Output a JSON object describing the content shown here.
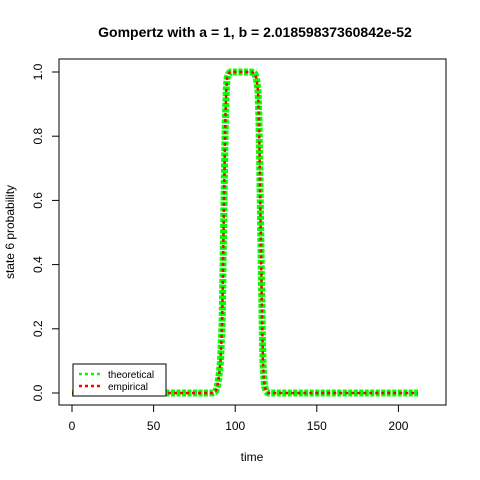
{
  "chart_data": {
    "type": "line",
    "title": "Gompertz with a = 1, b = 2.01859837360842e-52",
    "xlabel": "time",
    "ylabel": "state 6 probability",
    "xlim": [
      0,
      212
    ],
    "ylim": [
      0,
      1
    ],
    "x_ticks": [
      "0",
      "50",
      "100",
      "150",
      "200"
    ],
    "y_ticks": [
      "0.0",
      "0.2",
      "0.4",
      "0.6",
      "0.8",
      "1.0"
    ],
    "grid": false,
    "legend": {
      "position": "bottom-left",
      "entries": [
        {
          "label": "theoretical",
          "color": "#00ff00"
        },
        {
          "label": "empirical",
          "color": "#ff0000"
        }
      ]
    },
    "series": [
      {
        "name": "theoretical",
        "color": "#00ff00",
        "style": "dotted-thick",
        "x": [
          0,
          86,
          88,
          89,
          90,
          91,
          92,
          92.5,
          93,
          93.5,
          94,
          94.5,
          95,
          96,
          97,
          100,
          105,
          110,
          112,
          113,
          114,
          114.5,
          115,
          115.5,
          116,
          116.5,
          117,
          117.5,
          118,
          119,
          120,
          150,
          200,
          212
        ],
        "values": [
          0,
          0,
          0.005,
          0.02,
          0.05,
          0.1,
          0.22,
          0.38,
          0.55,
          0.72,
          0.86,
          0.94,
          0.98,
          0.995,
          1.0,
          1.0,
          1.0,
          1.0,
          0.995,
          0.98,
          0.94,
          0.86,
          0.72,
          0.55,
          0.38,
          0.22,
          0.1,
          0.05,
          0.02,
          0.005,
          0,
          0,
          0,
          0
        ]
      },
      {
        "name": "empirical",
        "color": "#ff0000",
        "style": "dotted",
        "x": [
          0,
          86,
          88,
          89,
          90,
          91,
          92,
          92.5,
          93,
          93.5,
          94,
          94.5,
          95,
          96,
          97,
          100,
          105,
          110,
          112,
          113,
          114,
          114.5,
          115,
          115.5,
          116,
          116.5,
          117,
          117.5,
          118,
          119,
          120,
          150,
          200,
          212
        ],
        "values": [
          0,
          0,
          0.005,
          0.02,
          0.05,
          0.1,
          0.22,
          0.38,
          0.55,
          0.72,
          0.86,
          0.94,
          0.98,
          0.995,
          1.0,
          1.0,
          1.0,
          1.0,
          0.995,
          0.98,
          0.94,
          0.86,
          0.72,
          0.55,
          0.38,
          0.22,
          0.1,
          0.05,
          0.02,
          0.005,
          0,
          0,
          0,
          0
        ]
      }
    ]
  }
}
